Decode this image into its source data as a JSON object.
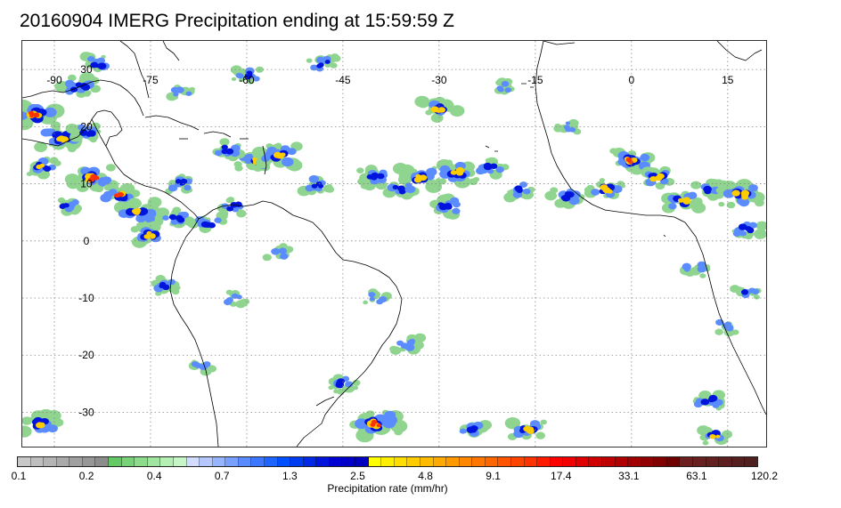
{
  "title": "20160904 IMERG Precipitation ending at 15:59:59 Z",
  "map": {
    "lon_ticks": [
      "-90",
      "-75",
      "-60",
      "-45",
      "-30",
      "-15",
      "0",
      "15"
    ],
    "lat_ticks": [
      "30",
      "20",
      "10",
      "0",
      "-10",
      "-20",
      "-30"
    ],
    "grid": "dotted",
    "projection": "cylindrical",
    "lon_range": [
      -95,
      21
    ],
    "lat_range": [
      -36,
      35
    ]
  },
  "colorbar": {
    "label": "Precipitation rate (mm/hr)",
    "tick_labels": [
      "0.1",
      "0.2",
      "0.4",
      "0.7",
      "1.3",
      "2.5",
      "4.8",
      "9.1",
      "17.4",
      "33.1",
      "63.1",
      "120.2"
    ],
    "colors": [
      "#c8c8c8",
      "#bebebe",
      "#b4b4b4",
      "#aaaaaa",
      "#a0a0a0",
      "#969696",
      "#8c8c8c",
      "#64c864",
      "#78d278",
      "#8cdc8c",
      "#a0e6a0",
      "#b4f0b4",
      "#c8f5c8",
      "#d2dcff",
      "#b4c8ff",
      "#96b4ff",
      "#78a0ff",
      "#5a8cff",
      "#3c78ff",
      "#1e64ff",
      "#0050ff",
      "#003cf0",
      "#0028e6",
      "#0014dc",
      "#0000d2",
      "#0000c8",
      "#0000be",
      "#ffff00",
      "#ffee00",
      "#ffdd00",
      "#ffcc00",
      "#ffbb00",
      "#ffaa00",
      "#ff9900",
      "#ff8800",
      "#ff7700",
      "#ff6600",
      "#ff5500",
      "#ff4400",
      "#ff3300",
      "#ff1a00",
      "#ff0000",
      "#f00000",
      "#e00000",
      "#d00000",
      "#c00000",
      "#b00000",
      "#a00000",
      "#900000",
      "#800000",
      "#700000",
      "#6e2020",
      "#682020",
      "#622020",
      "#5c2020",
      "#562020",
      "#502020"
    ]
  },
  "palette": {
    "rain_light": "#8fd48f",
    "rain_mod": "#5a8cff",
    "rain_heavy": "#0014dc",
    "rain_intense": "#ffcc00",
    "rain_extreme": "#ff3300",
    "coast": "#000000",
    "grid": "#888888"
  },
  "precip_cells": [
    [
      -93,
      22,
      1.6,
      4
    ],
    [
      -89,
      18,
      1.4,
      3
    ],
    [
      -86,
      27,
      1.2,
      2
    ],
    [
      -83,
      31,
      1.0,
      2
    ],
    [
      -92,
      13,
      1.1,
      3
    ],
    [
      -84,
      11,
      1.4,
      4
    ],
    [
      -80,
      8,
      1.2,
      4
    ],
    [
      -77,
      5,
      1.3,
      3
    ],
    [
      -75,
      1,
      1.2,
      3
    ],
    [
      -71,
      4,
      1.0,
      2
    ],
    [
      -73,
      -8,
      1.0,
      2
    ],
    [
      -66,
      3,
      1.0,
      2
    ],
    [
      -62,
      6,
      0.9,
      2
    ],
    [
      -70,
      10,
      1.0,
      2
    ],
    [
      -59,
      14,
      1.0,
      3
    ],
    [
      -55,
      15,
      1.3,
      3
    ],
    [
      -63,
      16,
      1.0,
      2
    ],
    [
      -49,
      10,
      1.0,
      2
    ],
    [
      -40,
      11,
      1.1,
      2
    ],
    [
      -33,
      11,
      1.3,
      3
    ],
    [
      -27,
      12,
      1.3,
      3
    ],
    [
      -22,
      13,
      1.0,
      2
    ],
    [
      -29,
      6,
      1.1,
      2
    ],
    [
      -36,
      9,
      1.0,
      2
    ],
    [
      -30,
      23,
      1.2,
      3
    ],
    [
      -17,
      9,
      1.0,
      2
    ],
    [
      -10,
      8,
      1.1,
      2
    ],
    [
      -4,
      9,
      1.2,
      3
    ],
    [
      0,
      14,
      1.3,
      4
    ],
    [
      4,
      11,
      1.1,
      3
    ],
    [
      8,
      7,
      1.2,
      3
    ],
    [
      12,
      9,
      1.0,
      2
    ],
    [
      17,
      8,
      1.4,
      3
    ],
    [
      18,
      2,
      1.0,
      2
    ],
    [
      18,
      -9,
      0.8,
      2
    ],
    [
      -40,
      -32,
      1.6,
      4
    ],
    [
      -45,
      -25,
      1.0,
      2
    ],
    [
      -25,
      -33,
      1.0,
      2
    ],
    [
      -16,
      -33,
      1.2,
      3
    ],
    [
      12,
      -28,
      1.0,
      2
    ],
    [
      13,
      -34,
      1.0,
      3
    ],
    [
      -92,
      -32,
      1.2,
      3
    ],
    [
      -48,
      31,
      1.0,
      2
    ],
    [
      -60,
      29,
      0.9,
      2
    ],
    [
      -40,
      -10,
      0.8,
      1
    ],
    [
      -62,
      -10,
      0.8,
      1
    ],
    [
      -55,
      -2,
      0.8,
      1
    ],
    [
      -10,
      20,
      0.7,
      1
    ],
    [
      -20,
      27,
      0.7,
      1
    ],
    [
      -70,
      26,
      0.8,
      1
    ],
    [
      -85,
      19,
      1.0,
      2
    ],
    [
      -88,
      6,
      0.9,
      2
    ],
    [
      -67,
      -22,
      0.8,
      1
    ],
    [
      -35,
      -18,
      0.9,
      1
    ],
    [
      10,
      -5,
      0.9,
      1
    ],
    [
      15,
      -15,
      0.8,
      1
    ]
  ]
}
